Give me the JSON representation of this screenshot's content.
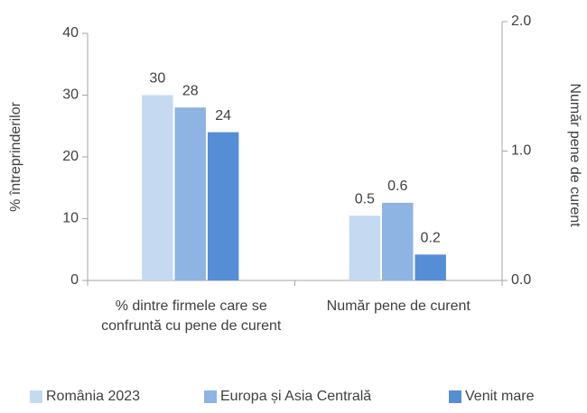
{
  "chart_data": {
    "type": "bar",
    "ylabel": "% întreprinderilor",
    "y2label": "Număr pene de curent",
    "categories": [
      "% dintre firmele care se confruntă cu pene de curent",
      "Număr pene de curent"
    ],
    "category_axes": [
      "y",
      "y2"
    ],
    "series": [
      {
        "name": "România 2023",
        "color": "#c5d9f1",
        "values": [
          30,
          0.5
        ]
      },
      {
        "name": "Europa și Asia Centrală",
        "color": "#8db4e2",
        "values": [
          28,
          0.6
        ]
      },
      {
        "name": "Venit mare",
        "color": "#558ed5",
        "values": [
          24,
          0.2
        ]
      }
    ],
    "ylim": [
      0,
      40
    ],
    "yticks": [
      0,
      10,
      20,
      30,
      40
    ],
    "y2lim": [
      0,
      2
    ],
    "y2ticks": [
      {
        "value": 0,
        "label": "0.0"
      },
      {
        "value": 1,
        "label": "1.0"
      },
      {
        "value": 2,
        "label": "2.0"
      }
    ]
  }
}
